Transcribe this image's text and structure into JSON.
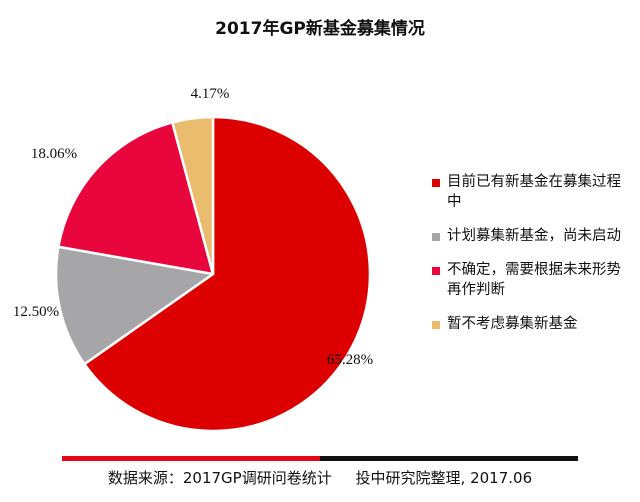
{
  "chart_data": {
    "type": "pie",
    "title": "2017年GP新基金募集情况",
    "slices": [
      {
        "label": "目前已有新基金在募集过程中",
        "value": 65.28,
        "display": "65.28%",
        "color": "#dd0000"
      },
      {
        "label": "计划募集新基金，尚未启动",
        "value": 12.5,
        "display": "12.50%",
        "color": "#a6a6a8"
      },
      {
        "label": "不确定，需要根据未来形势再作判断",
        "value": 18.06,
        "display": "18.06%",
        "color": "#e8063c"
      },
      {
        "label": "暂不考虑募集新基金",
        "value": 4.17,
        "display": "4.17%",
        "color": "#eabc6e"
      }
    ],
    "legend_position": "right"
  },
  "footer": {
    "source": "数据来源：2017GP调研问卷统计     投中研究院整理, 2017.06",
    "bar_colors": [
      "#e30613",
      "#111111"
    ]
  }
}
